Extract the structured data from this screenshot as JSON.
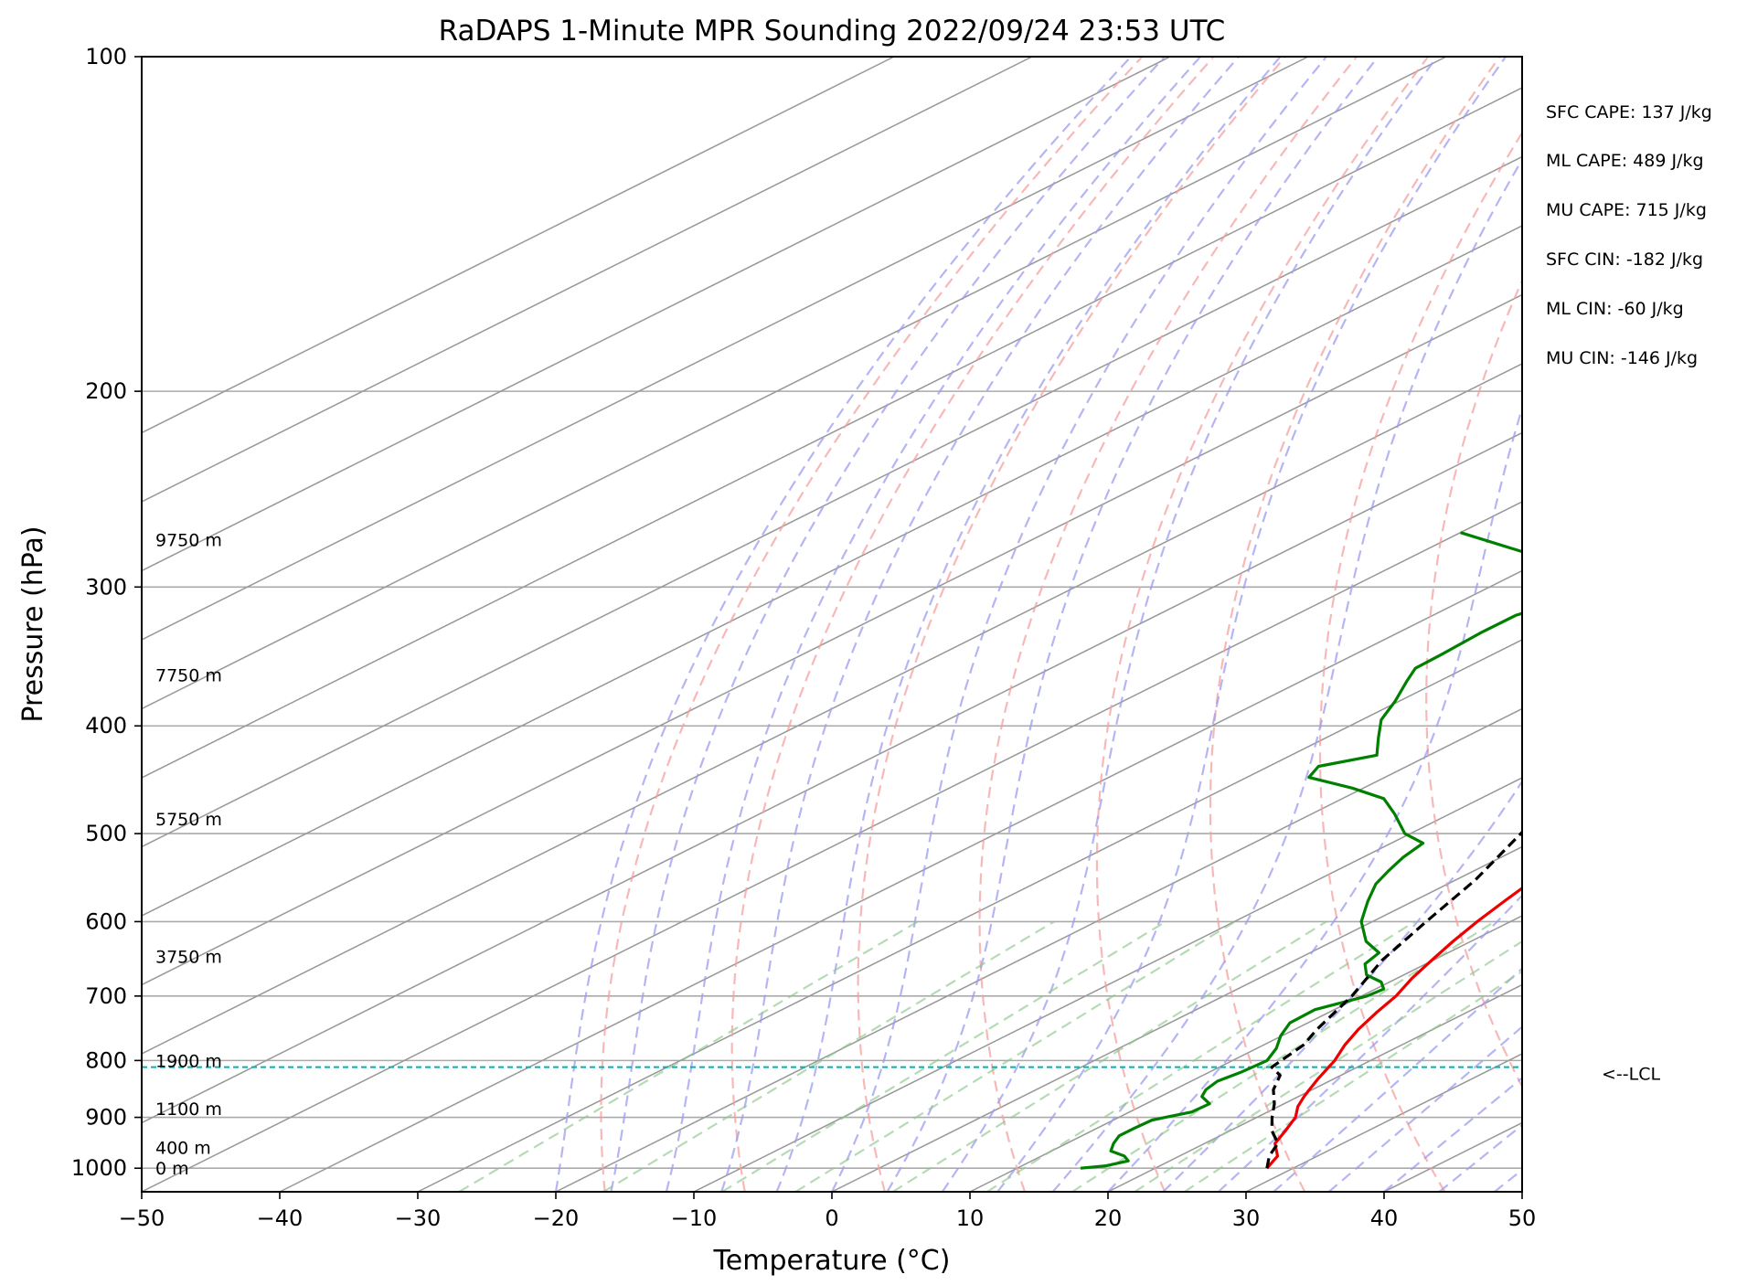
{
  "chart_data": {
    "type": "skew-t log-p",
    "title": "RaDAPS 1-Minute MPR Sounding 2022/09/24 23:53 UTC",
    "xlabel": "Temperature (°C)",
    "ylabel": "Pressure (hPa)",
    "xlim": [
      -50,
      50
    ],
    "ylim": [
      1050,
      100
    ],
    "y_scale": "log",
    "grid": true,
    "x_ticks": [
      -50,
      -40,
      -30,
      -20,
      -10,
      0,
      10,
      20,
      30,
      40,
      50
    ],
    "x_tick_labels": [
      "−50",
      "−40",
      "−30",
      "−20",
      "−10",
      "0",
      "10",
      "20",
      "30",
      "40",
      "50"
    ],
    "y_ticks": [
      100,
      200,
      300,
      400,
      500,
      600,
      700,
      800,
      900,
      1000
    ],
    "y_tick_labels": [
      "100",
      "200",
      "300",
      "400",
      "500",
      "600",
      "700",
      "800",
      "900",
      "1000"
    ],
    "background_colors": {
      "isotherms": "#999999",
      "dry_adiabats": "#f4a0a0",
      "moist_adiabats": "#9c9cf0",
      "mixing_ratio_lines": "#8ec88e"
    },
    "series": [
      {
        "color": "#ee0000",
        "points": [
          [
            1000,
            28.1
          ],
          [
            975,
            27.1
          ],
          [
            950,
            25.1
          ],
          [
            925,
            24.0
          ],
          [
            900,
            22.8
          ],
          [
            880,
            21.4
          ],
          [
            862,
            20.4
          ],
          [
            850,
            19.8
          ],
          [
            830,
            18.8
          ],
          [
            800,
            17.4
          ],
          [
            775,
            15.9
          ],
          [
            750,
            14.6
          ],
          [
            725,
            13.5
          ],
          [
            700,
            12.5
          ],
          [
            675,
            11.1
          ],
          [
            650,
            9.9
          ],
          [
            625,
            8.7
          ],
          [
            600,
            7.6
          ],
          [
            575,
            6.6
          ],
          [
            550,
            5.6
          ],
          [
            525,
            4.4
          ],
          [
            500,
            2.8
          ],
          [
            475,
            1.3
          ],
          [
            460,
            0.6
          ],
          [
            450,
            -0.1
          ],
          [
            425,
            -2.6
          ],
          [
            400,
            -5.3
          ],
          [
            375,
            -8.3
          ],
          [
            350,
            -11.8
          ],
          [
            325,
            -15.4
          ],
          [
            300,
            -19.8
          ],
          [
            285,
            -22.9
          ],
          [
            268,
            -26.4
          ]
        ]
      },
      {
        "color": "#008000",
        "points": [
          [
            1000,
            14.6
          ],
          [
            995,
            16.1
          ],
          [
            985,
            17.0
          ],
          [
            975,
            16.0
          ],
          [
            965,
            14.3
          ],
          [
            950,
            13.4
          ],
          [
            935,
            12.7
          ],
          [
            920,
            12.7
          ],
          [
            905,
            12.8
          ],
          [
            890,
            14.5
          ],
          [
            875,
            14.6
          ],
          [
            862,
            13.0
          ],
          [
            850,
            12.3
          ],
          [
            835,
            11.9
          ],
          [
            820,
            12.3
          ],
          [
            800,
            12.5
          ],
          [
            780,
            11.4
          ],
          [
            760,
            9.9
          ],
          [
            740,
            8.7
          ],
          [
            720,
            8.6
          ],
          [
            700,
            10.4
          ],
          [
            690,
            10.6
          ],
          [
            680,
            9.4
          ],
          [
            670,
            7.3
          ],
          [
            655,
            5.6
          ],
          [
            640,
            5.0
          ],
          [
            625,
            2.4
          ],
          [
            600,
            -0.8
          ],
          [
            575,
            -3.3
          ],
          [
            555,
            -5.2
          ],
          [
            540,
            -6.2
          ],
          [
            525,
            -7.1
          ],
          [
            510,
            -7.7
          ],
          [
            500,
            -10.4
          ],
          [
            480,
            -14.0
          ],
          [
            465,
            -17.0
          ],
          [
            455,
            -20.8
          ],
          [
            445,
            -25.5
          ],
          [
            435,
            -26.4
          ],
          [
            425,
            -23.8
          ],
          [
            410,
            -26.2
          ],
          [
            395,
            -28.6
          ],
          [
            380,
            -30.3
          ],
          [
            365,
            -32.3
          ],
          [
            355,
            -33.6
          ],
          [
            345,
            -33.7
          ],
          [
            330,
            -34.0
          ],
          [
            318,
            -34.0
          ],
          [
            308,
            -32.5
          ],
          [
            300,
            -32.0
          ],
          [
            290,
            -37.5
          ],
          [
            280,
            -42.0
          ],
          [
            268,
            -50.0
          ]
        ]
      },
      {
        "color": "#000000",
        "points": [
          [
            1000,
            28.1
          ],
          [
            975,
            26.5
          ],
          [
            950,
            25.3
          ],
          [
            925,
            23.0
          ],
          [
            900,
            21.1
          ],
          [
            875,
            19.3
          ],
          [
            850,
            17.2
          ],
          [
            825,
            15.6
          ],
          [
            811,
            13.8
          ],
          [
            775,
            12.9
          ],
          [
            750,
            11.6
          ],
          [
            700,
            9.3
          ],
          [
            650,
            6.3
          ],
          [
            600,
            3.9
          ],
          [
            550,
            1.4
          ],
          [
            500,
            -2.0
          ],
          [
            450,
            -5.9
          ],
          [
            400,
            -10.7
          ],
          [
            350,
            -16.7
          ],
          [
            300,
            -24.3
          ],
          [
            268,
            -30.3
          ]
        ]
      }
    ],
    "lcl_pressure": 811,
    "lcl_label": "<--LCL",
    "lcl_color": "#00b3b3",
    "height_labels": [
      {
        "text": "9750 m",
        "pressure": 272
      },
      {
        "text": "7750 m",
        "pressure": 360
      },
      {
        "text": "5750 m",
        "pressure": 485
      },
      {
        "text": "3750 m",
        "pressure": 645
      },
      {
        "text": "1900 m",
        "pressure": 800
      },
      {
        "text": "1100 m",
        "pressure": 884
      },
      {
        "text": "400 m",
        "pressure": 958
      },
      {
        "text": "0 m",
        "pressure": 1000
      }
    ],
    "stats": [
      "SFC CAPE: 137 J/kg",
      "ML CAPE: 489 J/kg",
      "MU CAPE: 715 J/kg",
      "SFC CIN: -182 J/kg",
      "ML CIN: -60 J/kg",
      "MU CIN: -146 J/kg"
    ]
  }
}
